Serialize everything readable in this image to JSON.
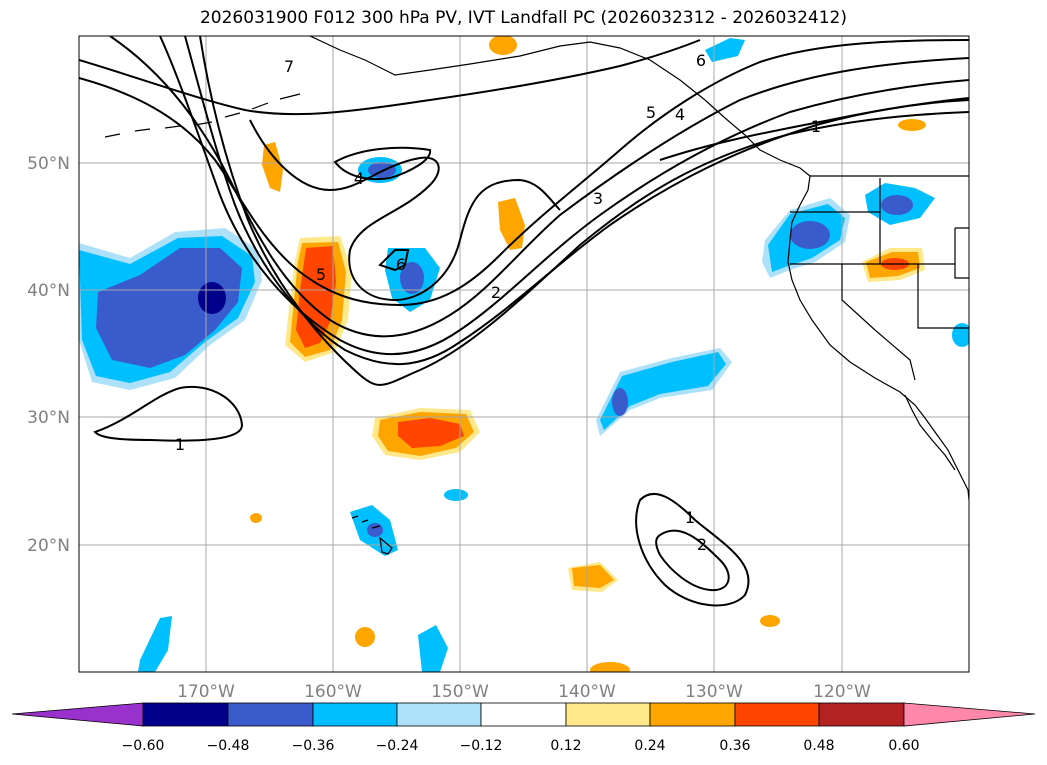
{
  "title": "2026031900 F012 300 hPa PV, IVT Landfall PC (2026032312 - 2026032412)",
  "map_data": {
    "projection": "PlateCarree",
    "extent": {
      "lon_min": -180,
      "lon_max": -110,
      "lat_min": 10,
      "lat_max": 60
    },
    "lon_ticks": [
      {
        "value": -170,
        "label": "170°W"
      },
      {
        "value": -160,
        "label": "160°W"
      },
      {
        "value": -150,
        "label": "150°W"
      },
      {
        "value": -140,
        "label": "140°W"
      },
      {
        "value": -130,
        "label": "130°W"
      },
      {
        "value": -120,
        "label": "120°W"
      }
    ],
    "lat_ticks": [
      {
        "value": 50,
        "label": "50°N"
      },
      {
        "value": 40,
        "label": "40°N"
      },
      {
        "value": 30,
        "label": "30°N"
      },
      {
        "value": 20,
        "label": "20°N"
      }
    ],
    "pv_contour_labels": [
      "7",
      "6",
      "5",
      "4",
      "3",
      "2",
      "1",
      "5",
      "6",
      "4",
      "2",
      "1",
      "1",
      "2"
    ],
    "colorbar": {
      "ticks": [
        "−0.60",
        "−0.48",
        "−0.36",
        "−0.24",
        "−0.12",
        "0.12",
        "0.24",
        "0.36",
        "0.48",
        "0.60"
      ],
      "bins": [
        "#9932CC",
        "#00008B",
        "#3A5BCB",
        "#00BFFF",
        "#ADE1FA",
        "#FFFFFF",
        "#FFE88A",
        "#FFA500",
        "#FF4500",
        "#B22222",
        "#FF88AA"
      ]
    }
  }
}
